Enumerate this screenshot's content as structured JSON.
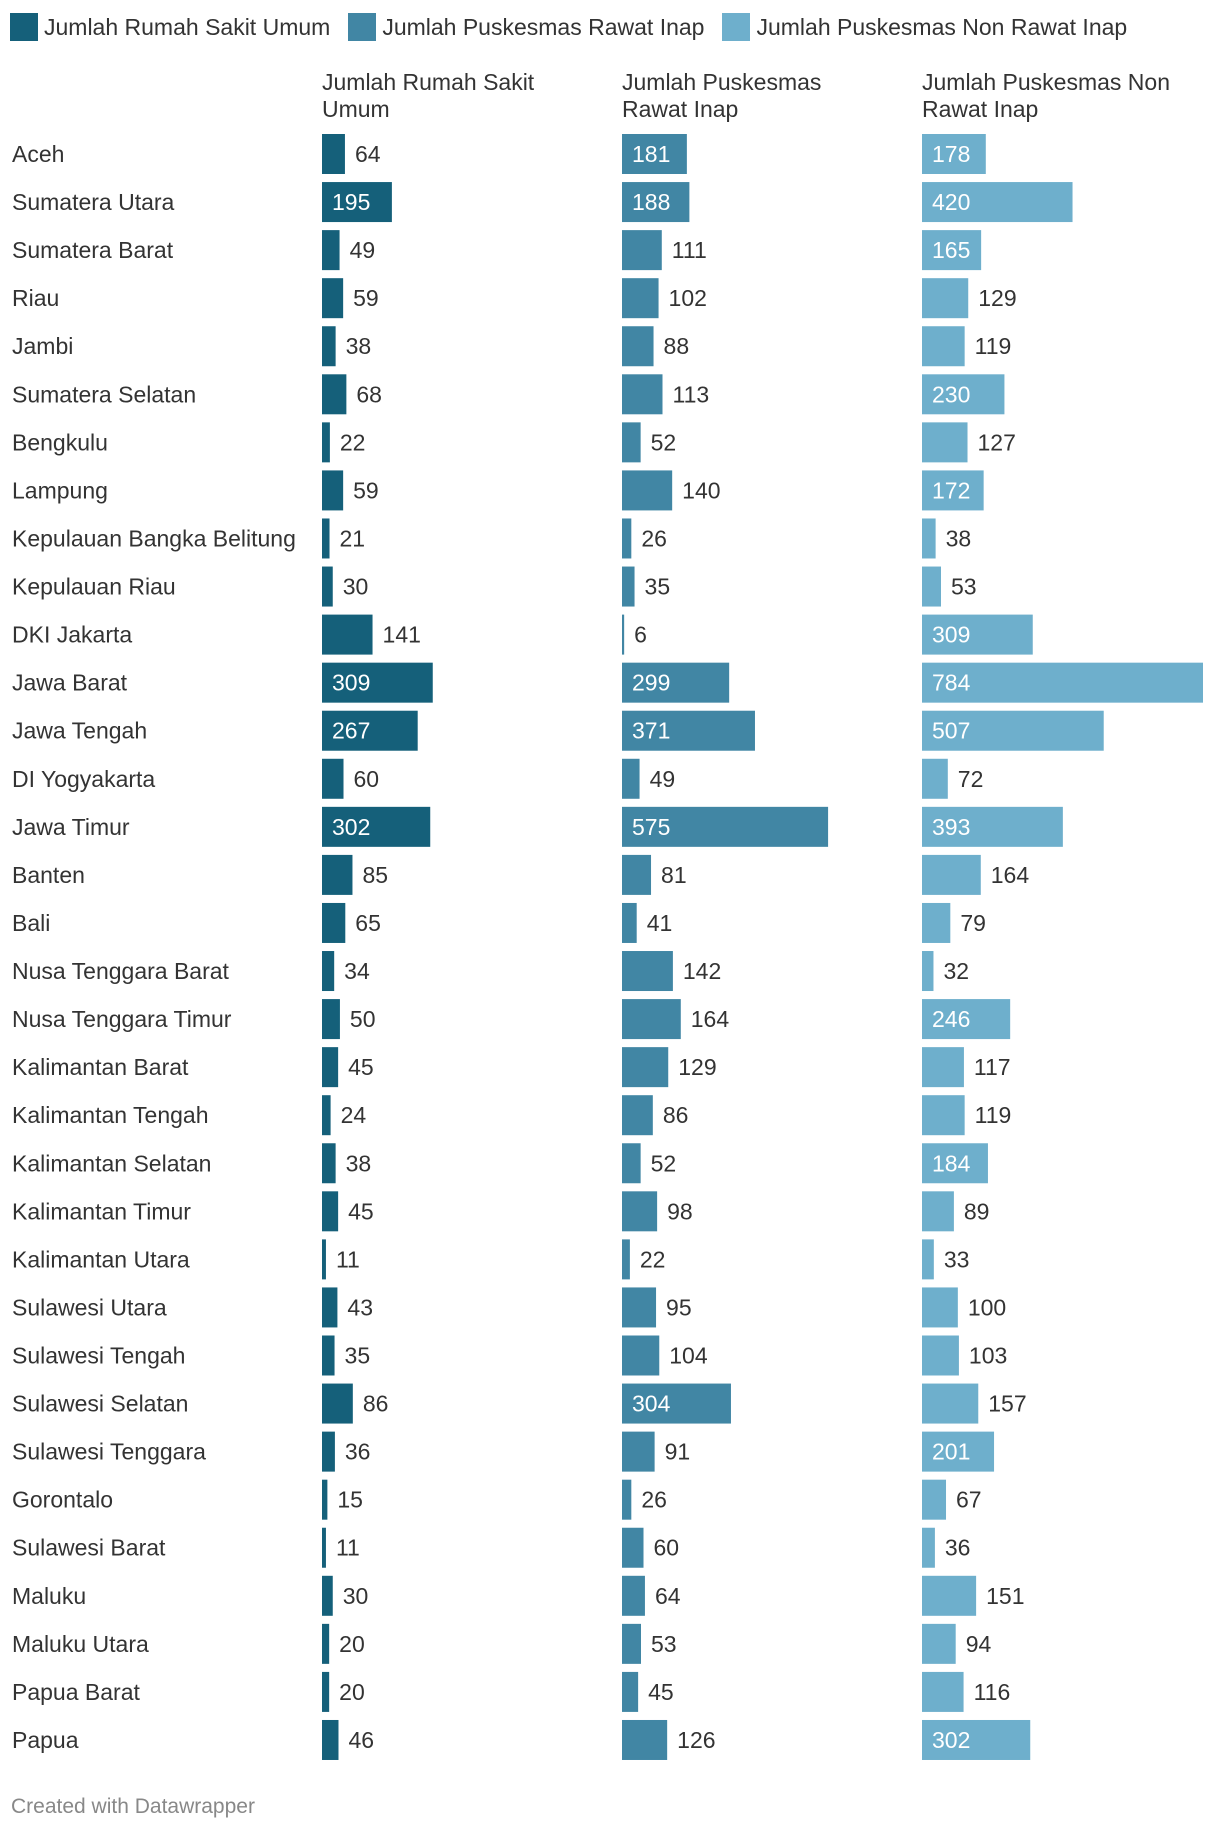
{
  "chart_data": {
    "type": "bar",
    "credit": "Created with Datawrapper",
    "categories": [
      "Aceh",
      "Sumatera Utara",
      "Sumatera Barat",
      "Riau",
      "Jambi",
      "Sumatera Selatan",
      "Bengkulu",
      "Lampung",
      "Kepulauan Bangka Belitung",
      "Kepulauan Riau",
      "DKI Jakarta",
      "Jawa Barat",
      "Jawa Tengah",
      "DI Yogyakarta",
      "Jawa Timur",
      "Banten",
      "Bali",
      "Nusa Tenggara Barat",
      "Nusa Tenggara Timur",
      "Kalimantan Barat",
      "Kalimantan Tengah",
      "Kalimantan Selatan",
      "Kalimantan Timur",
      "Kalimantan Utara",
      "Sulawesi Utara",
      "Sulawesi Tengah",
      "Sulawesi Selatan",
      "Sulawesi Tenggara",
      "Gorontalo",
      "Sulawesi Barat",
      "Maluku",
      "Maluku Utara",
      "Papua Barat",
      "Papua"
    ],
    "series": [
      {
        "name": "Jumlah Rumah Sakit Umum",
        "header": [
          "Jumlah Rumah Sakit",
          "Umum"
        ],
        "color": "#15607a",
        "values": [
          64,
          195,
          49,
          59,
          38,
          68,
          22,
          59,
          21,
          30,
          141,
          309,
          267,
          60,
          302,
          85,
          65,
          34,
          50,
          45,
          24,
          38,
          45,
          11,
          43,
          35,
          86,
          36,
          15,
          11,
          30,
          20,
          20,
          46
        ]
      },
      {
        "name": "Jumlah Puskesmas Rawat Inap",
        "header": [
          "Jumlah Puskesmas",
          "Rawat Inap"
        ],
        "color": "#4186a4",
        "values": [
          181,
          188,
          111,
          102,
          88,
          113,
          52,
          140,
          26,
          35,
          6,
          299,
          371,
          49,
          575,
          81,
          41,
          142,
          164,
          129,
          86,
          52,
          98,
          22,
          95,
          104,
          304,
          91,
          26,
          60,
          64,
          53,
          45,
          126
        ]
      },
      {
        "name": "Jumlah Puskesmas Non Rawat Inap",
        "header": [
          "Jumlah Puskesmas Non",
          "Rawat Inap"
        ],
        "color": "#6eafcc",
        "values": [
          178,
          420,
          165,
          129,
          119,
          230,
          127,
          172,
          38,
          53,
          309,
          784,
          507,
          72,
          393,
          164,
          79,
          32,
          246,
          117,
          119,
          184,
          89,
          33,
          100,
          103,
          157,
          201,
          67,
          36,
          151,
          94,
          116,
          302
        ]
      }
    ]
  }
}
